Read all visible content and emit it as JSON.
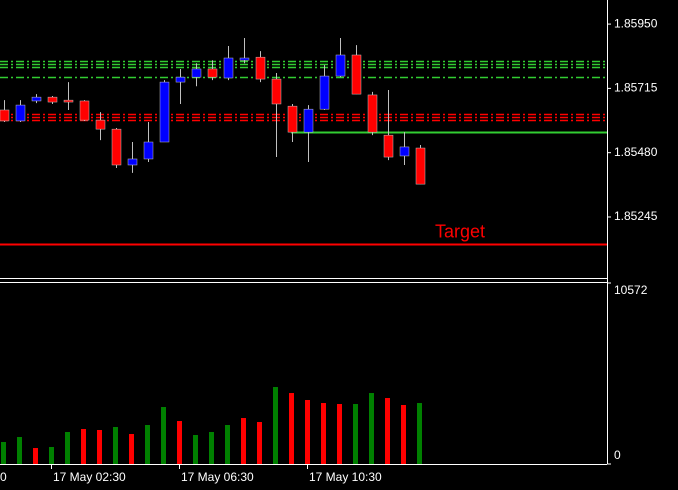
{
  "chart_data": [
    {
      "type": "candlestick",
      "open": [
        1.85636,
        1.85596,
        1.85669,
        1.85683,
        1.85672,
        1.85669,
        1.85599,
        1.85566,
        1.85435,
        1.85457,
        1.85519,
        1.85738,
        1.85756,
        1.85786,
        1.85753,
        1.85818,
        1.85829,
        1.85749,
        1.8565,
        1.85555,
        1.85639,
        1.8576,
        1.85837,
        1.85691,
        1.85544,
        1.85468,
        1.85497
      ],
      "high": [
        1.85672,
        1.85672,
        1.85694,
        1.85687,
        1.85738,
        1.85672,
        1.85628,
        1.8557,
        1.85519,
        1.85592,
        1.85745,
        1.85786,
        1.85807,
        1.85818,
        1.8587,
        1.85899,
        1.85851,
        1.85771,
        1.85658,
        1.85654,
        1.858,
        1.85899,
        1.85873,
        1.85702,
        1.85709,
        1.85555,
        1.85508
      ],
      "low": [
        1.85592,
        1.85592,
        1.85661,
        1.85658,
        1.85636,
        1.85596,
        1.85526,
        1.85424,
        1.85406,
        1.85446,
        1.85519,
        1.85658,
        1.85723,
        1.85745,
        1.85745,
        1.85807,
        1.85738,
        1.85464,
        1.85519,
        1.85446,
        1.85636,
        1.85756,
        1.85694,
        1.85544,
        1.85453,
        1.85435,
        1.85365
      ],
      "close": [
        1.85596,
        1.85654,
        1.85683,
        1.85665,
        1.85665,
        1.85599,
        1.85566,
        1.85435,
        1.85457,
        1.85519,
        1.85738,
        1.85756,
        1.85786,
        1.85756,
        1.85826,
        1.85826,
        1.85749,
        1.85658,
        1.85555,
        1.85639,
        1.8576,
        1.85837,
        1.85694,
        1.85555,
        1.85464,
        1.85501,
        1.85365
      ],
      "up_color": "#0000ff",
      "down_color": "#ff0000",
      "ylim": [
        1.85022,
        1.86038
      ],
      "yticks": [
        {
          "value": 1.8595,
          "label": "1.85950"
        },
        {
          "value": 1.85715,
          "label": "1.85715"
        },
        {
          "value": 1.8548,
          "label": "1.85480"
        },
        {
          "value": 1.85245,
          "label": "1.85245"
        }
      ],
      "levels": [
        {
          "value": 1.85815,
          "color": "#32cd32",
          "style": "dashdot"
        },
        {
          "value": 1.85804,
          "color": "#32cd32",
          "style": "dashdot"
        },
        {
          "value": 1.85793,
          "color": "#32cd32",
          "style": "dashdot"
        },
        {
          "value": 1.85756,
          "color": "#32cd32",
          "style": "dashdot"
        },
        {
          "value": 1.85621,
          "color": "#ff0000",
          "style": "dashdot"
        },
        {
          "value": 1.8561,
          "color": "#ff0000",
          "style": "dashdot"
        },
        {
          "value": 1.85599,
          "color": "#ff0000",
          "style": "dashdot"
        },
        {
          "value": 1.85555,
          "color": "#32cd32",
          "style": "solid",
          "start_index": 18
        },
        {
          "value": 1.85146,
          "color": "#ff0000",
          "style": "solid",
          "label": "Target"
        }
      ]
    },
    {
      "type": "bar",
      "categories": [
        null,
        null,
        null,
        "17 May 02:30",
        null,
        null,
        null,
        null,
        null,
        null,
        null,
        "17 May 06:30",
        null,
        null,
        null,
        null,
        null,
        null,
        null,
        "17 May 10:30",
        null,
        null,
        null,
        null,
        null,
        null,
        null
      ],
      "x_label_clipped": "0",
      "values": [
        1285,
        1577,
        934,
        993,
        1869,
        2044,
        1986,
        2161,
        1752,
        2278,
        3329,
        2511,
        1694,
        1869,
        2278,
        2686,
        2453,
        4497,
        4146,
        3738,
        3562,
        3504,
        3504,
        4146,
        3854,
        3446,
        3562
      ],
      "colors": [
        "#008000",
        "#008000",
        "#ff0000",
        "#008000",
        "#008000",
        "#ff0000",
        "#ff0000",
        "#008000",
        "#ff0000",
        "#008000",
        "#008000",
        "#ff0000",
        "#008000",
        "#008000",
        "#008000",
        "#ff0000",
        "#ff0000",
        "#008000",
        "#ff0000",
        "#ff0000",
        "#ff0000",
        "#ff0000",
        "#008000",
        "#008000",
        "#ff0000",
        "#ff0000",
        "#008000"
      ],
      "ylim": [
        0,
        10572
      ],
      "yticks": [
        10572,
        0
      ]
    }
  ]
}
